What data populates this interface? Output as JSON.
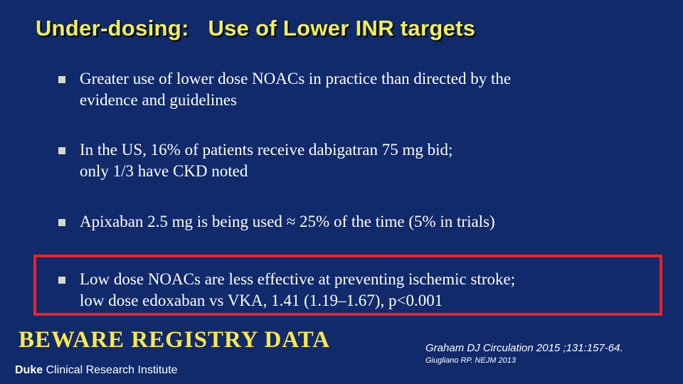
{
  "slide": {
    "title": "Under-dosing:   Use of Lower INR targets",
    "bullets": [
      {
        "text": "Greater use of lower dose NOACs in practice than directed by the\nevidence and guidelines"
      },
      {
        "text": "In the US, 16% of patients receive dabigatran 75 mg bid;\nonly 1/3 have CKD noted"
      },
      {
        "text": "Apixaban 2.5 mg is being used  ≈ 25% of the time (5% in trials)"
      },
      {
        "text": "Low dose NOACs are less effective at preventing ischemic stroke;\nlow dose edoxaban vs VKA, 1.41 (1.19–1.67), p<0.001"
      }
    ],
    "callout": "BEWARE REGISTRY DATA",
    "references": [
      "Graham DJ Circulation 2015 ;131:157-64.",
      "Giugliano RP. NEJM 2013"
    ],
    "logo": {
      "strong": "Duke",
      "rest": " Clinical Research Institute"
    }
  },
  "colors": {
    "background": "#102a6b",
    "title": "#f3ef50",
    "highlight_border": "#ff1e1e",
    "callout": "#ffe84a"
  }
}
